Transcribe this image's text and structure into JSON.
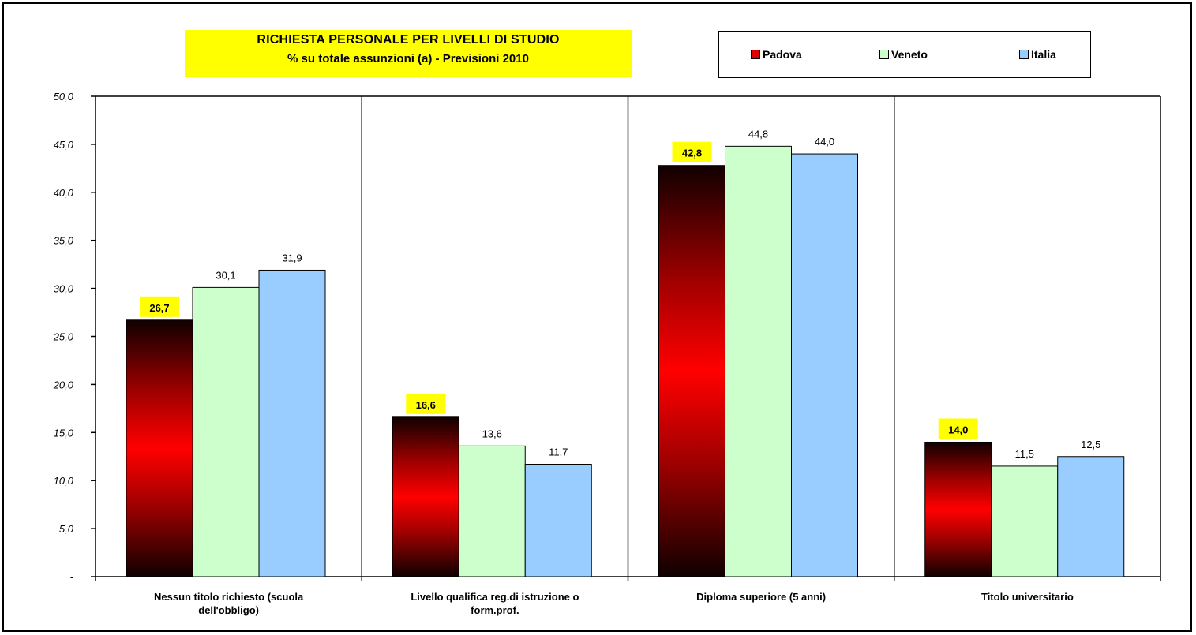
{
  "chart_data": {
    "type": "bar",
    "title": "RICHIESTA PERSONALE PER LIVELLI DI STUDIO",
    "subtitle": "% su totale assunzioni (a) - Previsioni 2010",
    "categories": [
      [
        "Nessun titolo richiesto (scuola",
        "dell'obbligo)"
      ],
      [
        "Livello qualifica reg.di istruzione o",
        "form.prof."
      ],
      [
        "Diploma superiore (5 anni)"
      ],
      [
        "Titolo universitario"
      ]
    ],
    "series": [
      {
        "name": "Padova",
        "values": [
          26.7,
          16.6,
          42.8,
          14.0
        ],
        "labels": [
          "26,7",
          "16,6",
          "42,8",
          "14,0"
        ],
        "color": "#e00000",
        "label_highlight": "#ffff00"
      },
      {
        "name": "Veneto",
        "values": [
          30.1,
          13.6,
          44.8,
          11.5
        ],
        "labels": [
          "30,1",
          "13,6",
          "44,8",
          "11,5"
        ],
        "color": "#ccffcc"
      },
      {
        "name": "Italia",
        "values": [
          31.9,
          11.7,
          44.0,
          12.5
        ],
        "labels": [
          "31,9",
          "11,7",
          "44,0",
          "12,5"
        ],
        "color": "#99ccff"
      }
    ],
    "ylim": [
      0,
      50
    ],
    "yticks": [
      0,
      5,
      10,
      15,
      20,
      25,
      30,
      35,
      40,
      45,
      50
    ],
    "ytick_labels": [
      "-",
      "5,0",
      "10,0",
      "15,0",
      "20,0",
      "25,0",
      "30,0",
      "35,0",
      "40,0",
      "45,0",
      "50,0"
    ],
    "grid": false,
    "category_separators": true,
    "legend_position": "top-right"
  }
}
